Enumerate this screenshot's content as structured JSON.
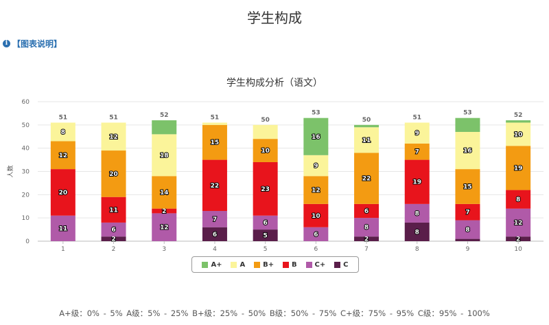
{
  "page": {
    "title": "学生构成",
    "explain_link": "【图表说明】",
    "footer_note": "A+级：0% - 5%   A级：5% - 25%   B+级：25% - 50%   B级：50% - 75%   C+级：75% - 95%   C级：95% - 100%"
  },
  "chart_data": {
    "type": "bar",
    "stacked": true,
    "title": "学生构成分析（语文）",
    "xlabel": "",
    "ylabel": "人数",
    "ylim": [
      0,
      60
    ],
    "yticks": [
      0,
      10,
      20,
      30,
      40,
      50,
      60
    ],
    "grid": true,
    "legend_position": "bottom",
    "categories": [
      "1",
      "2",
      "3",
      "4",
      "5",
      "6",
      "7",
      "8",
      "9",
      "10"
    ],
    "series": [
      {
        "name": "C",
        "color": "#5a1e4a",
        "values": [
          0,
          2,
          0,
          6,
          5,
          0,
          2,
          8,
          1,
          2
        ]
      },
      {
        "name": "C+",
        "color": "#b05aa8",
        "values": [
          11,
          6,
          12,
          7,
          6,
          6,
          8,
          8,
          8,
          12
        ]
      },
      {
        "name": "B",
        "color": "#e8141c",
        "values": [
          20,
          11,
          2,
          22,
          23,
          10,
          6,
          19,
          7,
          8
        ]
      },
      {
        "name": "B+",
        "color": "#f39b12",
        "values": [
          12,
          20,
          14,
          15,
          10,
          12,
          22,
          7,
          15,
          19
        ]
      },
      {
        "name": "A",
        "color": "#fbf49a",
        "values": [
          8,
          12,
          18,
          1,
          6,
          9,
          11,
          9,
          16,
          10
        ]
      },
      {
        "name": "A+",
        "color": "#7cc26a",
        "values": [
          0,
          0,
          6,
          0,
          0,
          16,
          1,
          0,
          6,
          1
        ]
      }
    ],
    "totals": [
      51,
      51,
      52,
      51,
      50,
      53,
      50,
      51,
      53,
      52
    ],
    "visible_labels": {
      "C": [
        null,
        "2",
        null,
        "6",
        "5",
        null,
        "2",
        "8",
        null,
        "2"
      ],
      "C+": [
        "11",
        "6",
        "12",
        "7",
        "6",
        "6",
        "8",
        "8",
        "8",
        "12"
      ],
      "B": [
        "20",
        "11",
        "2",
        "22",
        "23",
        "10",
        "6",
        "19",
        "7",
        "8"
      ],
      "B+": [
        "12",
        "20",
        "14",
        "15",
        "10",
        "12",
        "22",
        "7",
        "15",
        "19"
      ],
      "A": [
        "8",
        "12",
        "18",
        null,
        null,
        "9",
        "11",
        "9",
        "16",
        "10"
      ],
      "A+": [
        null,
        null,
        null,
        null,
        null,
        "16",
        null,
        null,
        null,
        null
      ]
    }
  },
  "legend": {
    "items": [
      {
        "label": "A+",
        "color": "#7cc26a"
      },
      {
        "label": "A",
        "color": "#fbf49a"
      },
      {
        "label": "B+",
        "color": "#f39b12"
      },
      {
        "label": "B",
        "color": "#e8141c"
      },
      {
        "label": "C+",
        "color": "#b05aa8"
      },
      {
        "label": "C",
        "color": "#5a1e4a"
      }
    ]
  }
}
